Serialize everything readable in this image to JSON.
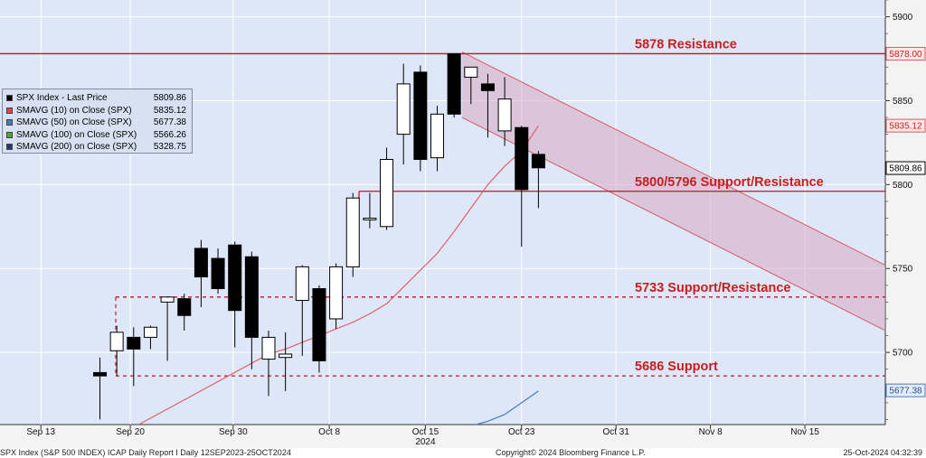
{
  "chart_data": {
    "type": "candlestick",
    "title": "",
    "yaxis": {
      "ticks": [
        5700,
        5750,
        5800,
        5850,
        5900
      ],
      "range": [
        5657,
        5910
      ],
      "position": "right"
    },
    "xaxis": {
      "tick_labels": [
        "Sep 13",
        "Sep 20",
        "Sep 30",
        "Oct 8",
        "Oct 15",
        "Oct 23",
        "Oct 31",
        "Nov 8",
        "Nov 15"
      ],
      "year_label": "2024"
    },
    "grid": true,
    "legend_position": "top-left",
    "candles": [
      {
        "o": 5688,
        "h": 5697,
        "l": 5660,
        "c": 5686
      },
      {
        "o": 5701,
        "h": 5716,
        "l": 5686,
        "c": 5712
      },
      {
        "o": 5709,
        "h": 5715,
        "l": 5680,
        "c": 5702
      },
      {
        "o": 5709,
        "h": 5716,
        "l": 5702,
        "c": 5715
      },
      {
        "o": 5730,
        "h": 5732,
        "l": 5695,
        "c": 5733
      },
      {
        "o": 5732,
        "h": 5735,
        "l": 5713,
        "c": 5722
      },
      {
        "o": 5762,
        "h": 5767,
        "l": 5727,
        "c": 5745
      },
      {
        "o": 5756,
        "h": 5762,
        "l": 5735,
        "c": 5738
      },
      {
        "o": 5764,
        "h": 5766,
        "l": 5703,
        "c": 5725
      },
      {
        "o": 5757,
        "h": 5760,
        "l": 5690,
        "c": 5709
      },
      {
        "o": 5696,
        "h": 5713,
        "l": 5674,
        "c": 5709
      },
      {
        "o": 5697,
        "h": 5712,
        "l": 5677,
        "c": 5699
      },
      {
        "o": 5731,
        "h": 5752,
        "l": 5698,
        "c": 5751
      },
      {
        "o": 5738,
        "h": 5740,
        "l": 5688,
        "c": 5695
      },
      {
        "o": 5720,
        "h": 5753,
        "l": 5714,
        "c": 5751
      },
      {
        "o": 5751,
        "h": 5795,
        "l": 5745,
        "c": 5792
      },
      {
        "o": 5779,
        "h": 5795,
        "l": 5774,
        "c": 5780
      },
      {
        "o": 5775,
        "h": 5822,
        "l": 5773,
        "c": 5815
      },
      {
        "o": 5830,
        "h": 5872,
        "l": 5812,
        "c": 5860
      },
      {
        "o": 5867,
        "h": 5871,
        "l": 5808,
        "c": 5815
      },
      {
        "o": 5816,
        "h": 5847,
        "l": 5808,
        "c": 5842
      },
      {
        "o": 5878,
        "h": 5878,
        "l": 5840,
        "c": 5842
      },
      {
        "o": 5864,
        "h": 5870,
        "l": 5848,
        "c": 5870
      },
      {
        "o": 5860,
        "h": 5866,
        "l": 5828,
        "c": 5856
      },
      {
        "o": 5832,
        "h": 5864,
        "l": 5823,
        "c": 5851
      },
      {
        "o": 5834,
        "h": 5835,
        "l": 5763,
        "c": 5797
      },
      {
        "o": 5818,
        "h": 5820,
        "l": 5786,
        "c": 5810
      }
    ],
    "series": [
      {
        "name": "SMAVG (10)  on Close (SPX)",
        "values": [
          null,
          null,
          null,
          null,
          null,
          null,
          null,
          null,
          null,
          null,
          5699,
          5702,
          5706,
          5710,
          5714,
          5718,
          5723,
          5729,
          5739,
          5749,
          5759,
          5772,
          5786,
          5800,
          5811,
          5820,
          5835
        ]
      },
      {
        "name": "SMAVG (50)  on Close (SPX)",
        "values": [
          null,
          null,
          null,
          null,
          null,
          null,
          null,
          null,
          null,
          null,
          null,
          null,
          null,
          null,
          null,
          null,
          null,
          null,
          null,
          null,
          null,
          null,
          null,
          5659,
          5663,
          5670,
          5677
        ]
      }
    ],
    "levels": [
      {
        "label": "5878 Resistance",
        "value": 5878
      },
      {
        "label": "5800/5796 Support/Resistance",
        "value": 5796
      },
      {
        "label": "5733 Support/Resistance",
        "value": 5733
      },
      {
        "label": "5686 Support",
        "value": 5686
      }
    ],
    "channel": {
      "upper": [
        5879,
        5752
      ],
      "lower": [
        5840,
        5713
      ]
    },
    "price_tags": [
      {
        "text": "5878.00",
        "value": 5878,
        "style": "red"
      },
      {
        "text": "5835.12",
        "value": 5835.12,
        "style": "red"
      },
      {
        "text": "5809.86",
        "value": 5809.86,
        "style": "black"
      },
      {
        "text": "5677.38",
        "value": 5677.38,
        "style": "blue"
      }
    ]
  },
  "legend": [
    {
      "label": "SPX Index - Last Price",
      "value": "5809.86",
      "color": "#000000"
    },
    {
      "label": "SMAVG (10)  on Close (SPX)",
      "value": "5835.12",
      "color": "#e8414a"
    },
    {
      "label": "SMAVG (50)  on Close (SPX)",
      "value": "5677.38",
      "color": "#4a7ac0"
    },
    {
      "label": "SMAVG (100)  on Close (SPX)",
      "value": "5566.26",
      "color": "#5aa02c"
    },
    {
      "label": "SMAVG (200)  on Close (SPX)",
      "value": "5328.75",
      "color": "#233a6e"
    }
  ],
  "footer": {
    "left": "SPX Index (S&P 500 INDEX) ICAP Daily Report I  Daily 12SEP2023-25OCT2024",
    "center": "Copyright© 2024 Bloomberg Finance L.P.",
    "right": "25-Oct-2024 04:32:39"
  },
  "colors": {
    "background": "#dde7f7",
    "axis_panel": "#f3f3f3",
    "grid": "#ffffff",
    "level_line": "#c0142c",
    "level_text": "#c81e1e",
    "channel_fill": "#d8a9c4",
    "sma10": "#e0606a",
    "sma50": "#4a7ac0"
  }
}
